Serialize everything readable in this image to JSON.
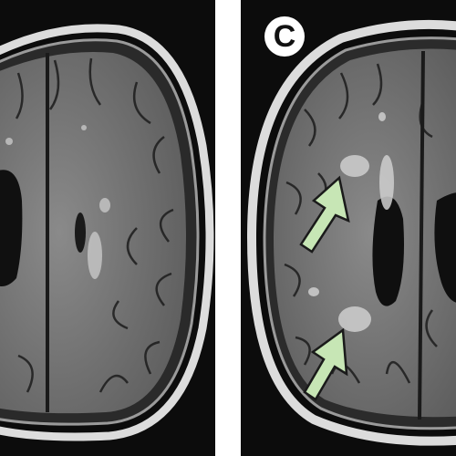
{
  "figure": {
    "panel_label": "C",
    "colors": {
      "background": "#0c0c0c",
      "skull": "#d9d9d9",
      "brain": "#7a7a7a",
      "lesion": "#c8c8c8",
      "arrow": "#c7e6b5"
    },
    "arrow_count": 2
  }
}
